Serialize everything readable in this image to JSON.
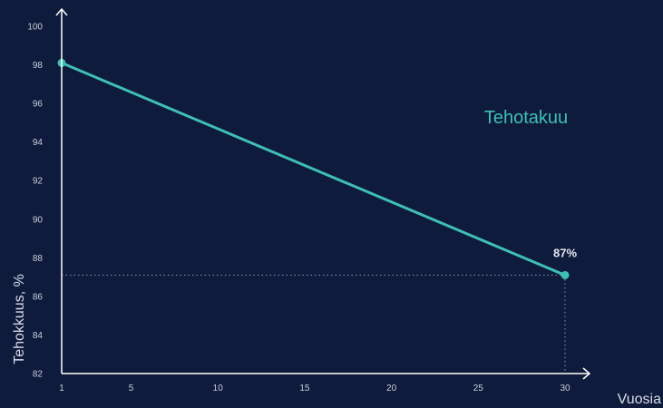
{
  "chart_data": {
    "type": "line",
    "xlabel": "Vuosia",
    "ylabel": "Tehokkuus, %",
    "x_ticks": [
      1,
      5,
      10,
      15,
      20,
      25,
      30
    ],
    "y_ticks": [
      82,
      84,
      86,
      88,
      90,
      92,
      94,
      96,
      98,
      100
    ],
    "xlim": [
      1,
      30
    ],
    "ylim": [
      82,
      100
    ],
    "grid": false,
    "series": [
      {
        "name": "Tehotakuu",
        "x": [
          1,
          30
        ],
        "y": [
          98.1,
          87.1
        ],
        "color": "#3fbfb3"
      }
    ],
    "annotations": [
      {
        "text": "87%",
        "x": 30,
        "y": 87.1
      }
    ],
    "colors": {
      "background": "#0f1b3d",
      "axis": "#ffffff",
      "line": "#3fbfb3",
      "guide": "#8a93a8"
    }
  }
}
